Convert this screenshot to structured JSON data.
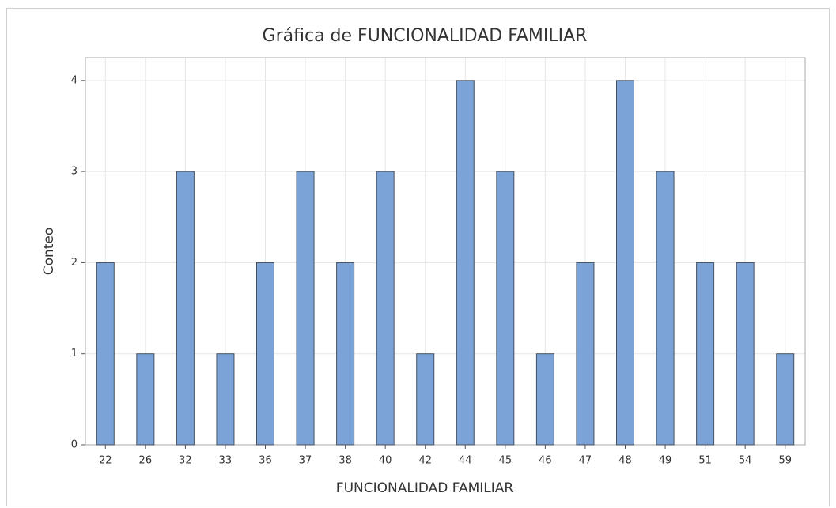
{
  "chart_data": {
    "type": "bar",
    "title": "Gráfica de FUNCIONALIDAD FAMILIAR",
    "x_label": "FUNCIONALIDAD FAMILIAR",
    "y_label": "Conteo",
    "categories": [
      "22",
      "26",
      "32",
      "33",
      "36",
      "37",
      "38",
      "40",
      "42",
      "44",
      "45",
      "46",
      "47",
      "48",
      "49",
      "51",
      "54",
      "59"
    ],
    "values": [
      2,
      1,
      3,
      1,
      2,
      3,
      2,
      3,
      1,
      4,
      3,
      1,
      2,
      4,
      3,
      2,
      2,
      1
    ],
    "color": "#7ba3d8",
    "ylim": [
      0,
      4.25
    ],
    "yticks": [
      0,
      1,
      2,
      3,
      4
    ],
    "grid": true
  }
}
